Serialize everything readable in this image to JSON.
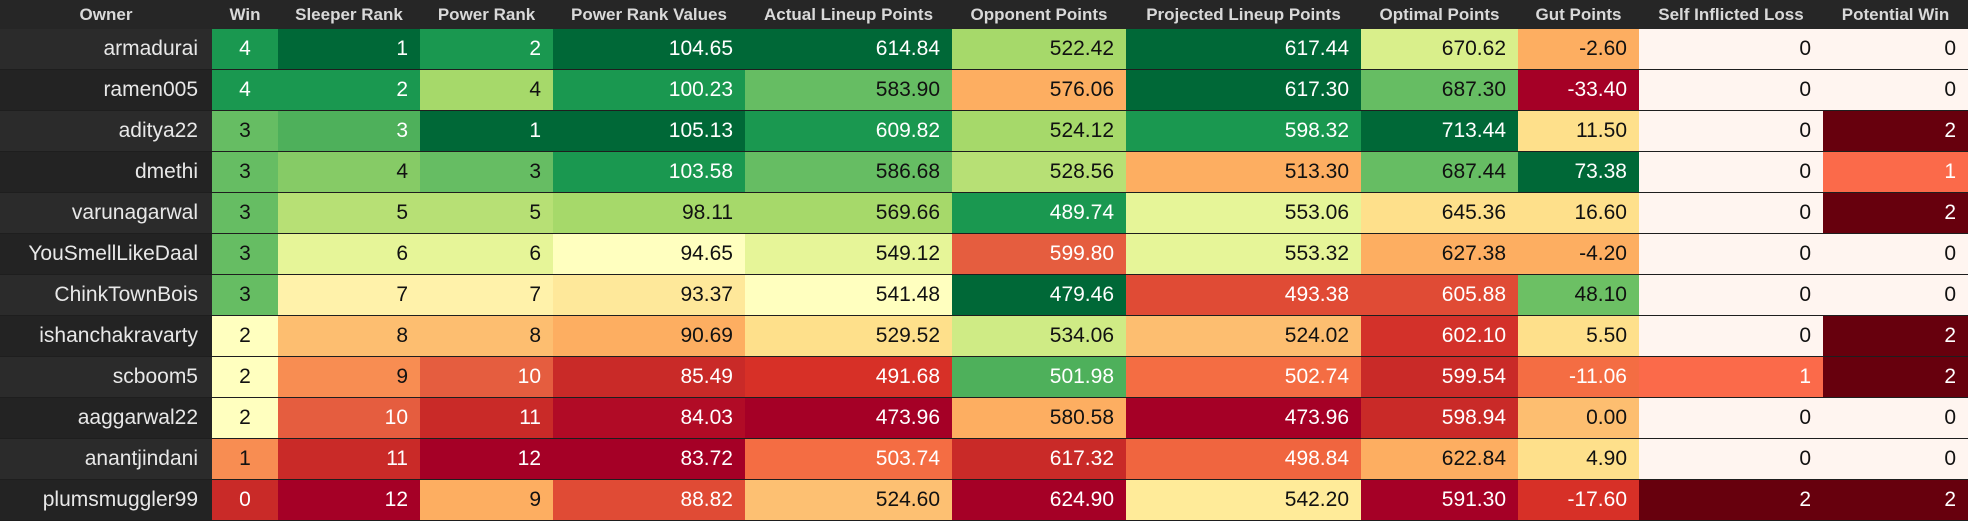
{
  "columns": [
    {
      "key": "owner",
      "label": "Owner",
      "width": 212
    },
    {
      "key": "win",
      "label": "Win",
      "width": 66
    },
    {
      "key": "sleeper_rank",
      "label": "Sleeper Rank",
      "width": 142
    },
    {
      "key": "power_rank",
      "label": "Power Rank",
      "width": 133
    },
    {
      "key": "power_rank_values",
      "label": "Power Rank Values",
      "width": 192
    },
    {
      "key": "actual_lineup_points",
      "label": "Actual Lineup Points",
      "width": 207
    },
    {
      "key": "opponent_points",
      "label": "Opponent Points",
      "width": 174
    },
    {
      "key": "projected_lineup_points",
      "label": "Projected Lineup Points",
      "width": 235
    },
    {
      "key": "optimal_points",
      "label": "Optimal Points",
      "width": 157
    },
    {
      "key": "gut_points",
      "label": "Gut Points",
      "width": 121
    },
    {
      "key": "self_inflicted_loss",
      "label": "Self Inflicted Loss",
      "width": 184
    },
    {
      "key": "potential_win",
      "label": "Potential Win",
      "width": 145
    }
  ],
  "rows": [
    {
      "owner": "armadurai",
      "win": "4",
      "sleeper_rank": "1",
      "power_rank": "2",
      "power_rank_values": "104.65",
      "actual_lineup_points": "614.84",
      "opponent_points": "522.42",
      "projected_lineup_points": "617.44",
      "optimal_points": "670.62",
      "gut_points": "-2.60",
      "self_inflicted_loss": "0",
      "potential_win": "0",
      "colors": {
        "win": "#1a9850",
        "sleeper_rank": "#006837",
        "power_rank": "#1a9850",
        "power_rank_values": "#006837",
        "actual_lineup_points": "#006837",
        "opponent_points": "#a6d96a",
        "projected_lineup_points": "#006837",
        "optimal_points": "#d9ef8b",
        "gut_points": "#fdae61",
        "self_inflicted_loss": "#fff5f0",
        "potential_win": "#fff5f0"
      }
    },
    {
      "owner": "ramen005",
      "win": "4",
      "sleeper_rank": "2",
      "power_rank": "4",
      "power_rank_values": "100.23",
      "actual_lineup_points": "583.90",
      "opponent_points": "576.06",
      "projected_lineup_points": "617.30",
      "optimal_points": "687.30",
      "gut_points": "-33.40",
      "self_inflicted_loss": "0",
      "potential_win": "0",
      "colors": {
        "win": "#1a9850",
        "sleeper_rank": "#1a9850",
        "power_rank": "#a6d96a",
        "power_rank_values": "#1a9850",
        "actual_lineup_points": "#66bd63",
        "opponent_points": "#fdae61",
        "projected_lineup_points": "#006837",
        "optimal_points": "#66bd63",
        "gut_points": "#a50026",
        "self_inflicted_loss": "#fff5f0",
        "potential_win": "#fff5f0"
      }
    },
    {
      "owner": "aditya22",
      "win": "3",
      "sleeper_rank": "3",
      "power_rank": "1",
      "power_rank_values": "105.13",
      "actual_lineup_points": "609.82",
      "opponent_points": "524.12",
      "projected_lineup_points": "598.32",
      "optimal_points": "713.44",
      "gut_points": "11.50",
      "self_inflicted_loss": "0",
      "potential_win": "2",
      "colors": {
        "win": "#66bd63",
        "sleeper_rank": "#4eb05b",
        "power_rank": "#006837",
        "power_rank_values": "#006837",
        "actual_lineup_points": "#1a9850",
        "opponent_points": "#a6d96a",
        "projected_lineup_points": "#1a9850",
        "optimal_points": "#006837",
        "gut_points": "#fee08b",
        "self_inflicted_loss": "#fff5f0",
        "potential_win": "#67000d"
      }
    },
    {
      "owner": "dmethi",
      "win": "3",
      "sleeper_rank": "4",
      "power_rank": "3",
      "power_rank_values": "103.58",
      "actual_lineup_points": "586.68",
      "opponent_points": "528.56",
      "projected_lineup_points": "513.30",
      "optimal_points": "687.44",
      "gut_points": "73.38",
      "self_inflicted_loss": "0",
      "potential_win": "1",
      "colors": {
        "win": "#66bd63",
        "sleeper_rank": "#86cb66",
        "power_rank": "#66bd63",
        "power_rank_values": "#1a9850",
        "actual_lineup_points": "#66bd63",
        "opponent_points": "#b7e075",
        "projected_lineup_points": "#fdae61",
        "optimal_points": "#66bd63",
        "gut_points": "#006837",
        "self_inflicted_loss": "#fff5f0",
        "potential_win": "#fb6a4a"
      }
    },
    {
      "owner": "varunagarwal",
      "win": "3",
      "sleeper_rank": "5",
      "power_rank": "5",
      "power_rank_values": "98.11",
      "actual_lineup_points": "569.66",
      "opponent_points": "489.74",
      "projected_lineup_points": "553.06",
      "optimal_points": "645.36",
      "gut_points": "16.60",
      "self_inflicted_loss": "0",
      "potential_win": "2",
      "colors": {
        "win": "#66bd63",
        "sleeper_rank": "#b7e075",
        "power_rank": "#b7e075",
        "power_rank_values": "#a6d96a",
        "actual_lineup_points": "#a6d96a",
        "opponent_points": "#1a9850",
        "projected_lineup_points": "#e6f598",
        "optimal_points": "#fee08b",
        "gut_points": "#fee08b",
        "self_inflicted_loss": "#fff5f0",
        "potential_win": "#67000d"
      }
    },
    {
      "owner": "YouSmellLikeDaal",
      "win": "3",
      "sleeper_rank": "6",
      "power_rank": "6",
      "power_rank_values": "94.65",
      "actual_lineup_points": "549.12",
      "opponent_points": "599.80",
      "projected_lineup_points": "553.32",
      "optimal_points": "627.38",
      "gut_points": "-4.20",
      "self_inflicted_loss": "0",
      "potential_win": "0",
      "colors": {
        "win": "#66bd63",
        "sleeper_rank": "#e6f598",
        "power_rank": "#e6f598",
        "power_rank_values": "#ffffbf",
        "actual_lineup_points": "#e6f598",
        "opponent_points": "#e55d3f",
        "projected_lineup_points": "#e6f598",
        "optimal_points": "#fdae61",
        "gut_points": "#fdae61",
        "self_inflicted_loss": "#fff5f0",
        "potential_win": "#fff5f0"
      }
    },
    {
      "owner": "ChinkTownBois",
      "win": "3",
      "sleeper_rank": "7",
      "power_rank": "7",
      "power_rank_values": "93.37",
      "actual_lineup_points": "541.48",
      "opponent_points": "479.46",
      "projected_lineup_points": "493.38",
      "optimal_points": "605.88",
      "gut_points": "48.10",
      "self_inflicted_loss": "0",
      "potential_win": "0",
      "colors": {
        "win": "#66bd63",
        "sleeper_rank": "#fff2aa",
        "power_rank": "#fff2aa",
        "power_rank_values": "#fee89a",
        "actual_lineup_points": "#ffffbf",
        "opponent_points": "#006837",
        "projected_lineup_points": "#e04b35",
        "optimal_points": "#e04b35",
        "gut_points": "#6cc064",
        "self_inflicted_loss": "#fff5f0",
        "potential_win": "#fff5f0"
      }
    },
    {
      "owner": "ishanchakravarty",
      "win": "2",
      "sleeper_rank": "8",
      "power_rank": "8",
      "power_rank_values": "90.69",
      "actual_lineup_points": "529.52",
      "opponent_points": "534.06",
      "projected_lineup_points": "524.02",
      "optimal_points": "602.10",
      "gut_points": "5.50",
      "self_inflicted_loss": "0",
      "potential_win": "2",
      "colors": {
        "win": "#ffffbf",
        "sleeper_rank": "#fdbe70",
        "power_rank": "#fdbe70",
        "power_rank_values": "#fdae61",
        "actual_lineup_points": "#fee08b",
        "opponent_points": "#cfeb85",
        "projected_lineup_points": "#fdbe70",
        "optimal_points": "#d3312a",
        "gut_points": "#fee08b",
        "self_inflicted_loss": "#fff5f0",
        "potential_win": "#67000d"
      }
    },
    {
      "owner": "scboom5",
      "win": "2",
      "sleeper_rank": "9",
      "power_rank": "10",
      "power_rank_values": "85.49",
      "actual_lineup_points": "491.68",
      "opponent_points": "501.98",
      "projected_lineup_points": "502.74",
      "optimal_points": "599.54",
      "gut_points": "-11.06",
      "self_inflicted_loss": "1",
      "potential_win": "2",
      "colors": {
        "win": "#ffffbf",
        "sleeper_rank": "#f88d52",
        "power_rank": "#e55d3f",
        "power_rank_values": "#c92a28",
        "actual_lineup_points": "#d73027",
        "opponent_points": "#4eb05b",
        "projected_lineup_points": "#f46d43",
        "optimal_points": "#c92a28",
        "gut_points": "#f46d43",
        "self_inflicted_loss": "#fb6a4a",
        "potential_win": "#67000d"
      }
    },
    {
      "owner": "aaggarwal22",
      "win": "2",
      "sleeper_rank": "10",
      "power_rank": "11",
      "power_rank_values": "84.03",
      "actual_lineup_points": "473.96",
      "opponent_points": "580.58",
      "projected_lineup_points": "473.96",
      "optimal_points": "598.94",
      "gut_points": "0.00",
      "self_inflicted_loss": "0",
      "potential_win": "0",
      "colors": {
        "win": "#ffffbf",
        "sleeper_rank": "#e55d3f",
        "power_rank": "#c92a28",
        "power_rank_values": "#b10b26",
        "actual_lineup_points": "#a50026",
        "opponent_points": "#fdae61",
        "projected_lineup_points": "#a50026",
        "optimal_points": "#c92a28",
        "gut_points": "#fdbe70",
        "self_inflicted_loss": "#fff5f0",
        "potential_win": "#fff5f0"
      }
    },
    {
      "owner": "anantjindani",
      "win": "1",
      "sleeper_rank": "11",
      "power_rank": "12",
      "power_rank_values": "83.72",
      "actual_lineup_points": "503.74",
      "opponent_points": "617.32",
      "projected_lineup_points": "498.84",
      "optimal_points": "622.84",
      "gut_points": "4.90",
      "self_inflicted_loss": "0",
      "potential_win": "0",
      "colors": {
        "win": "#f88d52",
        "sleeper_rank": "#c92a28",
        "power_rank": "#a50026",
        "power_rank_values": "#a50026",
        "actual_lineup_points": "#f46d43",
        "opponent_points": "#c92a28",
        "projected_lineup_points": "#f0653f",
        "optimal_points": "#fdae61",
        "gut_points": "#fee08b",
        "self_inflicted_loss": "#fff5f0",
        "potential_win": "#fff5f0"
      }
    },
    {
      "owner": "plumsmuggler99",
      "win": "0",
      "sleeper_rank": "12",
      "power_rank": "9",
      "power_rank_values": "88.82",
      "actual_lineup_points": "524.60",
      "opponent_points": "624.90",
      "projected_lineup_points": "542.20",
      "optimal_points": "591.30",
      "gut_points": "-17.60",
      "self_inflicted_loss": "2",
      "potential_win": "2",
      "colors": {
        "win": "#c92a28",
        "sleeper_rank": "#a50026",
        "power_rank": "#fdae61",
        "power_rank_values": "#e04b35",
        "actual_lineup_points": "#fdc072",
        "opponent_points": "#a50026",
        "projected_lineup_points": "#ffeb99",
        "optimal_points": "#a50026",
        "gut_points": "#d73027",
        "self_inflicted_loss": "#67000d",
        "potential_win": "#67000d"
      }
    }
  ]
}
